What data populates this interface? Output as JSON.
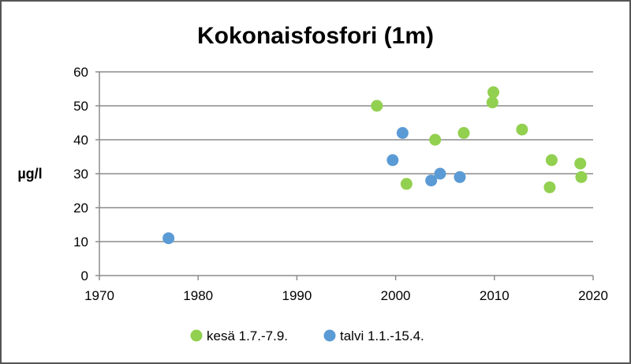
{
  "chart_data": {
    "type": "scatter",
    "title": "Kokonaisfosfori (1m)",
    "ylabel": "µg/l",
    "xlabel": "",
    "xlim": [
      1970,
      2020
    ],
    "ylim": [
      0,
      60
    ],
    "x_ticks": [
      1970,
      1980,
      1990,
      2000,
      2010,
      2020
    ],
    "y_ticks": [
      0,
      10,
      20,
      30,
      40,
      50,
      60
    ],
    "grid": "horizontal",
    "legend_position": "bottom",
    "series": [
      {
        "name": "kesä 1.7.-7.9.",
        "color": "#92d050",
        "points": [
          {
            "x": 1998.1,
            "y": 50
          },
          {
            "x": 2001.1,
            "y": 27
          },
          {
            "x": 2004.0,
            "y": 40
          },
          {
            "x": 2006.9,
            "y": 42
          },
          {
            "x": 2009.8,
            "y": 51
          },
          {
            "x": 2009.9,
            "y": 54
          },
          {
            "x": 2012.8,
            "y": 43
          },
          {
            "x": 2015.6,
            "y": 26
          },
          {
            "x": 2015.8,
            "y": 34
          },
          {
            "x": 2018.7,
            "y": 33
          },
          {
            "x": 2018.8,
            "y": 29
          }
        ]
      },
      {
        "name": "talvi 1.1.-15.4.",
        "color": "#5b9bd5",
        "points": [
          {
            "x": 1977.0,
            "y": 11
          },
          {
            "x": 1999.7,
            "y": 34
          },
          {
            "x": 2000.7,
            "y": 42
          },
          {
            "x": 2003.6,
            "y": 28
          },
          {
            "x": 2004.5,
            "y": 30
          },
          {
            "x": 2006.5,
            "y": 29
          }
        ]
      }
    ]
  }
}
